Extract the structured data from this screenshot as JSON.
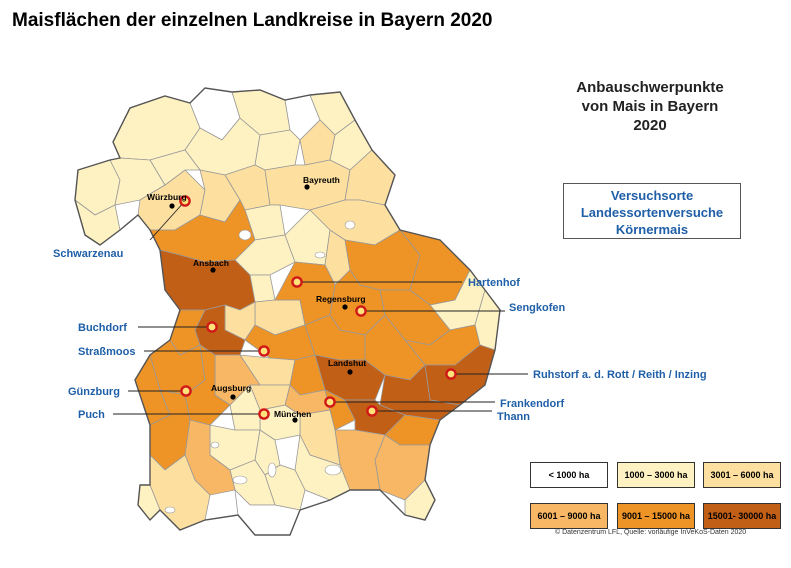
{
  "title": "Maisflächen der einzelnen Landkreise in Bayern 2020",
  "subtitle": [
    "Anbauschwerpunkte",
    "von Mais in Bayern",
    "2020"
  ],
  "infobox": [
    "Versuchsorte",
    "Landessortenversuche",
    "Körnermais"
  ],
  "colors": {
    "class1": "#ffffff",
    "class2": "#fff2c2",
    "class3": "#fde0a0",
    "class4": "#f7b765",
    "class5": "#ee9325",
    "class6": "#c25f17",
    "border": "#999999",
    "outer_border": "#555555",
    "site_ring": "#d01818",
    "label_blue": "#1f5fa8",
    "leader": "#222222"
  },
  "legend": [
    {
      "label": "< 1000 ha",
      "class": "class1"
    },
    {
      "label": "1000 – 3000 ha",
      "class": "class2"
    },
    {
      "label": "3001 – 6000 ha",
      "class": "class3"
    },
    {
      "label": "6001 – 9000 ha",
      "class": "class4"
    },
    {
      "label": "9001 – 15000 ha",
      "class": "class5"
    },
    {
      "label": "15001- 30000 ha",
      "class": "class6"
    }
  ],
  "cities": [
    "Würzburg",
    "Bayreuth",
    "Ansbach",
    "Regensburg",
    "Landshut",
    "Augsburg",
    "München"
  ],
  "sites": [
    "Schwarzenau",
    "Hartenhof",
    "Sengkofen",
    "Buchdorf",
    "Straßmoos",
    "Ruhstorf a. d. Rott / Reith / Inzing",
    "Günzburg",
    "Frankendorf",
    "Puch",
    "Thann"
  ],
  "copyright": "© Datenzentrum LFL, Quelle: vorläufige InVeKoS-Daten 2020"
}
